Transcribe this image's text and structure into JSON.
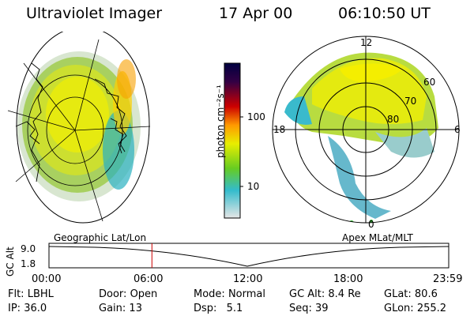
{
  "header": {
    "title": "Ultraviolet Imager",
    "date": "17 Apr 00",
    "time": "06:10:50 UT"
  },
  "colorbar": {
    "unit_label": "photon cm⁻²s⁻¹",
    "ticks": [
      "100",
      "10"
    ]
  },
  "polar": {
    "mlt_labels": [
      "12",
      "18",
      "6",
      "0"
    ],
    "lat_labels": [
      "60",
      "70",
      "80"
    ]
  },
  "timeline": {
    "left_title": "Geographic Lat/Lon",
    "right_title": "Apex MLat/MLT",
    "axis_label": "GC Alt",
    "y_ticks": [
      "9.0",
      "1.8"
    ],
    "x_ticks": [
      "00:00",
      "06:00",
      "12:00",
      "18:00",
      "23:59"
    ],
    "current_time_hours": 6.18
  },
  "status": {
    "row1": [
      {
        "key": "Flt:",
        "val": "LBHL"
      },
      {
        "key": "Door:",
        "val": "Open"
      },
      {
        "key": "Mode:",
        "val": "Normal"
      },
      {
        "key": "GC Alt:",
        "val": "8.4 Re"
      },
      {
        "key": "GLat:",
        "val": "80.6"
      }
    ],
    "row2": [
      {
        "key": "IP:",
        "val": "36.0"
      },
      {
        "key": "Gain:",
        "val": "13"
      },
      {
        "key": "Dsp:",
        "val": "5.1"
      },
      {
        "key": "Seq:",
        "val": "39"
      },
      {
        "key": "GLon:",
        "val": "255.2"
      }
    ]
  },
  "colors": {
    "bar_top": "#000040",
    "bar_high": "#cc0000",
    "bar_mid": "#ffaa00",
    "bar_yellow": "#e8ee00",
    "bar_green": "#66cc22",
    "bar_cyan": "#33bbcc",
    "bar_low": "#e6e6e6",
    "marker": "#cc0000"
  }
}
